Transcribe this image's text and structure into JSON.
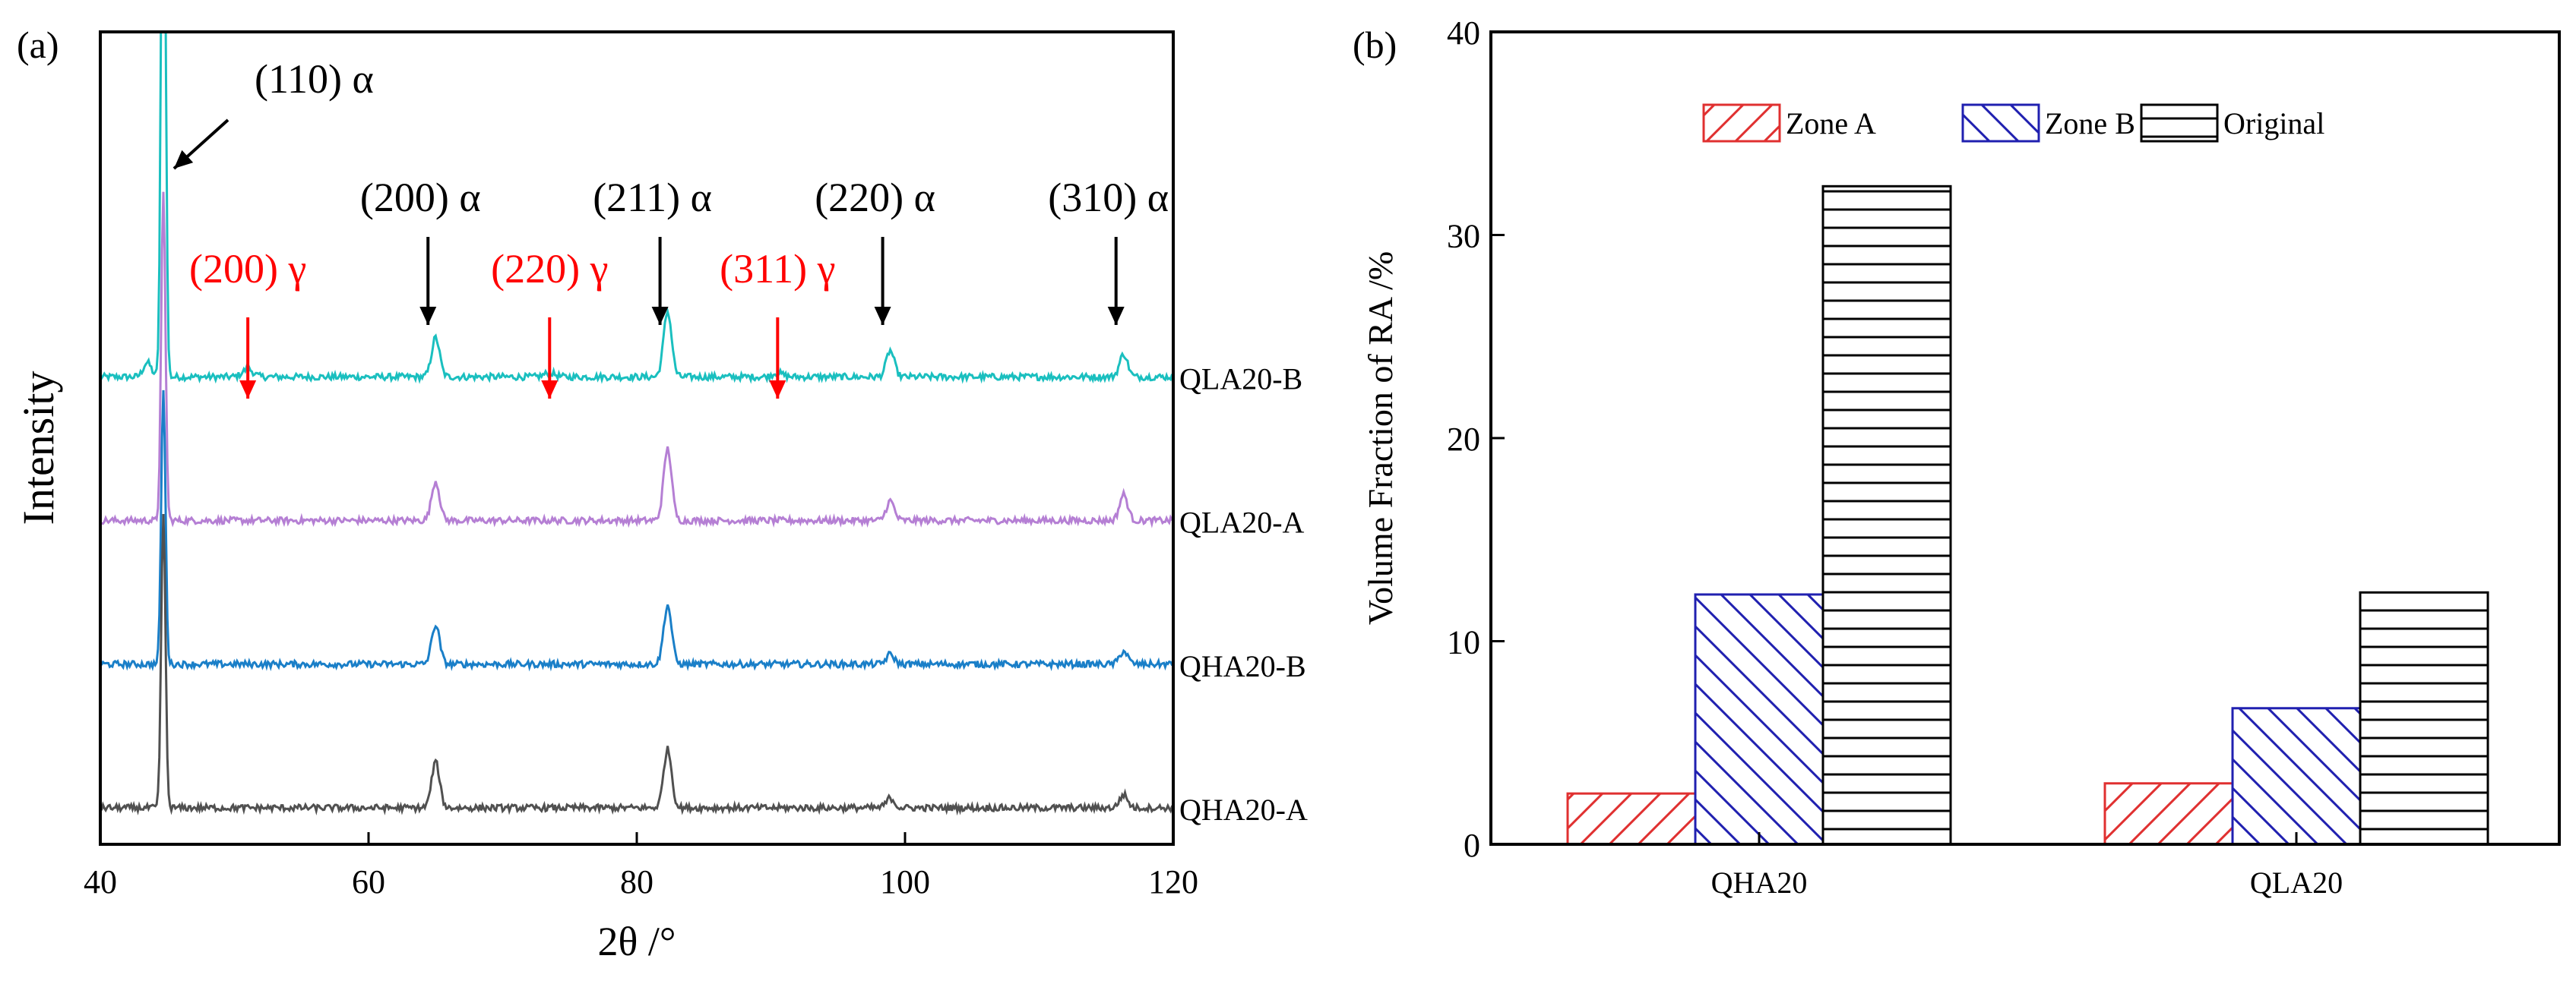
{
  "chart_data": [
    {
      "panel": "(a)",
      "type": "line",
      "xlabel": "2θ /°",
      "ylabel": "Intensity",
      "xlim": [
        40,
        120
      ],
      "xticks": [
        40,
        60,
        80,
        100,
        120
      ],
      "series": [
        {
          "name": "QLA20-B",
          "color": "#1abfbf",
          "offset": 0.66,
          "gamma_bumps": true,
          "peaks": [
            [
              43.5,
              0.022
            ],
            [
              44.7,
              1.0
            ],
            [
              65.0,
              0.06
            ],
            [
              82.3,
              0.1
            ],
            [
              98.9,
              0.04
            ],
            [
              116.3,
              0.035
            ]
          ]
        },
        {
          "name": "QLA20-A",
          "color": "#b57fd4",
          "offset": 0.44,
          "gamma_bumps": false,
          "peaks": [
            [
              44.7,
              0.5
            ],
            [
              65.0,
              0.06
            ],
            [
              82.3,
              0.11
            ],
            [
              98.9,
              0.03
            ],
            [
              116.3,
              0.04
            ]
          ]
        },
        {
          "name": "QHA20-B",
          "color": "#1a7fc8",
          "offset": 0.22,
          "gamma_bumps": false,
          "peaks": [
            [
              44.7,
              0.42
            ],
            [
              65.0,
              0.06
            ],
            [
              82.3,
              0.09
            ],
            [
              98.9,
              0.015
            ],
            [
              116.3,
              0.02
            ]
          ]
        },
        {
          "name": "QHA20-A",
          "color": "#505050",
          "offset": 0.0,
          "gamma_bumps": false,
          "peaks": [
            [
              44.7,
              0.45
            ],
            [
              65.0,
              0.07
            ],
            [
              82.3,
              0.09
            ],
            [
              98.9,
              0.015
            ],
            [
              116.3,
              0.02
            ]
          ]
        }
      ],
      "annotations": [
        {
          "text": "(110) α",
          "color": "#000000",
          "x": 44.7
        },
        {
          "text": "(200) α",
          "color": "#000000",
          "x": 65.0
        },
        {
          "text": "(211) α",
          "color": "#000000",
          "x": 82.3
        },
        {
          "text": "(220) α",
          "color": "#000000",
          "x": 98.9
        },
        {
          "text": "(310) α",
          "color": "#000000",
          "x": 116.3
        },
        {
          "text": "(200) γ",
          "color": "#ff0000",
          "x": 51.0
        },
        {
          "text": "(220) γ",
          "color": "#ff0000",
          "x": 73.5
        },
        {
          "text": "(311) γ",
          "color": "#ff0000",
          "x": 90.5
        }
      ]
    },
    {
      "panel": "(b)",
      "type": "bar",
      "categories": [
        "QHA20",
        "QLA20"
      ],
      "series": [
        {
          "name": "Zone A",
          "color": "#e03030",
          "pattern": "diag-right",
          "values": [
            2.5,
            3.0
          ]
        },
        {
          "name": "Zone B",
          "color": "#2020b0",
          "pattern": "diag-left",
          "values": [
            12.3,
            6.7
          ]
        },
        {
          "name": "Original",
          "color": "#000000",
          "pattern": "horizontal",
          "values": [
            32.4,
            12.4
          ]
        }
      ],
      "xlabel": "",
      "ylabel": "Volume Fraction of RA /%",
      "ylim": [
        0,
        40
      ],
      "yticks": [
        0,
        10,
        20,
        30,
        40
      ],
      "legend": "top-center"
    }
  ]
}
